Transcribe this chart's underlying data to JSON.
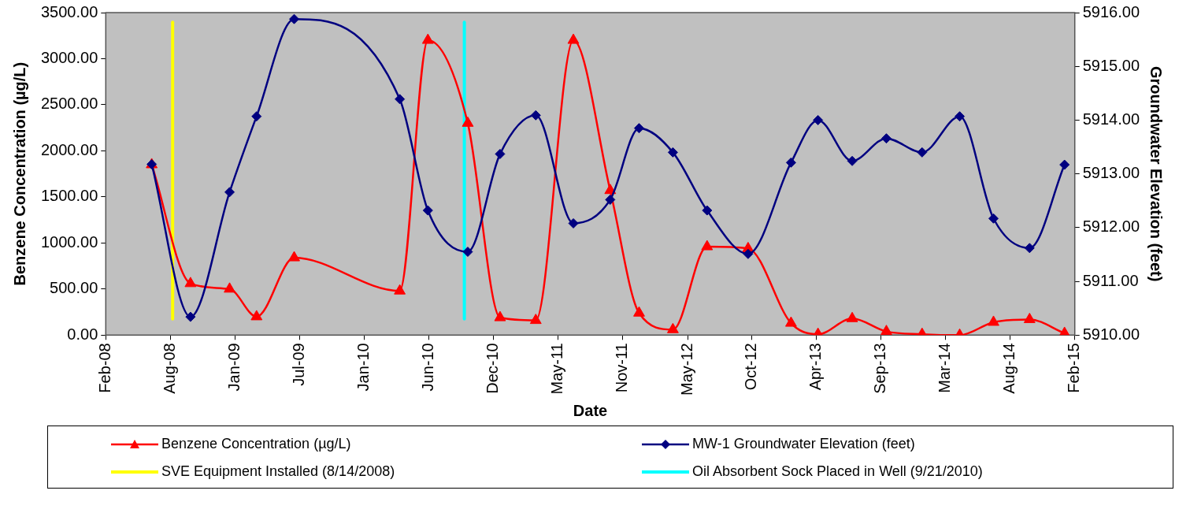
{
  "chart_data": {
    "type": "line",
    "xlabel": "Date",
    "ylabel": "Benzene Concentration (µg/L)",
    "y2label": "Groundwater Elevation (feet)",
    "x": [
      "2008-06-20",
      "2008-09-30",
      "2009-01-11",
      "2009-03-23",
      "2009-06-30",
      "2010-04-04",
      "2010-06-17",
      "2010-09-30",
      "2010-12-24",
      "2011-03-28",
      "2011-07-05",
      "2011-10-10",
      "2011-12-25",
      "2012-03-23",
      "2012-06-21",
      "2012-10-07",
      "2013-01-28",
      "2013-04-09",
      "2013-07-08",
      "2013-10-06",
      "2014-01-08",
      "2014-04-17",
      "2014-07-15",
      "2014-10-18",
      "2015-01-18"
    ],
    "series": [
      {
        "name": "Benzene Concentration (µg/L)",
        "color": "#ff0000",
        "marker": "triangle",
        "values": [
          1850,
          560,
          500,
          200,
          840,
          480,
          3200,
          2300,
          190,
          160,
          3200,
          1570,
          240,
          60,
          960,
          940,
          130,
          10,
          180,
          40,
          10,
          0,
          140,
          170,
          20
        ]
      },
      {
        "name": "MW-1 Groundwater Elevation (feet)",
        "color": "#000080",
        "marker": "diamond",
        "axis": "y2",
        "values": [
          5913.18,
          5910.34,
          5912.66,
          5914.07,
          5915.88,
          5914.39,
          5912.32,
          5911.55,
          5913.37,
          5914.09,
          5912.08,
          5912.52,
          5913.85,
          5913.4,
          5912.32,
          5911.51,
          5913.21,
          5914.0,
          5913.24,
          5913.66,
          5913.4,
          5914.07,
          5912.17,
          5911.62,
          5913.17
        ]
      }
    ],
    "xlim": [
      "2008-02-20",
      "2015-02-14"
    ],
    "xticks": [
      {
        "value": "2008-02-20",
        "label": "Feb-08"
      },
      {
        "value": "2008-08-08",
        "label": "Aug-08"
      },
      {
        "value": "2009-01-25",
        "label": "Jan-09"
      },
      {
        "value": "2009-07-14",
        "label": "Jul-09"
      },
      {
        "value": "2010-01-01",
        "label": "Jan-10"
      },
      {
        "value": "2010-06-19",
        "label": "Jun-10"
      },
      {
        "value": "2010-12-06",
        "label": "Dec-10"
      },
      {
        "value": "2011-05-25",
        "label": "May-11"
      },
      {
        "value": "2011-11-11",
        "label": "Nov-11"
      },
      {
        "value": "2012-05-01",
        "label": "May-12"
      },
      {
        "value": "2012-10-16",
        "label": "Oct-12"
      },
      {
        "value": "2013-04-04",
        "label": "Apr-13"
      },
      {
        "value": "2013-09-21",
        "label": "Sep-13"
      },
      {
        "value": "2014-03-10",
        "label": "Mar-14"
      },
      {
        "value": "2014-08-27",
        "label": "Aug-14"
      },
      {
        "value": "2015-02-13",
        "label": "Feb-15"
      }
    ],
    "ylim": [
      0,
      3500
    ],
    "yticks": [
      {
        "value": 0,
        "label": "0.00"
      },
      {
        "value": 500,
        "label": "500.00"
      },
      {
        "value": 1000,
        "label": "1000.00"
      },
      {
        "value": 1500,
        "label": "1500.00"
      },
      {
        "value": 2000,
        "label": "2000.00"
      },
      {
        "value": 2500,
        "label": "2500.00"
      },
      {
        "value": 3000,
        "label": "3000.00"
      },
      {
        "value": 3500,
        "label": "3500.00"
      }
    ],
    "y2lim": [
      5910,
      5916
    ],
    "y2ticks": [
      {
        "value": 5910,
        "label": "5910.00"
      },
      {
        "value": 5911,
        "label": "5911.00"
      },
      {
        "value": 5912,
        "label": "5912.00"
      },
      {
        "value": 5913,
        "label": "5913.00"
      },
      {
        "value": 5914,
        "label": "5914.00"
      },
      {
        "value": 5915,
        "label": "5915.00"
      },
      {
        "value": 5916,
        "label": "5916.00"
      }
    ],
    "ref_lines": [
      {
        "axis": "x",
        "value": "2008-08-14",
        "label": "SVE Equipment Installed (8/14/2008)",
        "color": "#ffff00"
      },
      {
        "axis": "x",
        "value": "2010-09-21",
        "label": "Oil Absorbent Sock Placed in Well (9/21/2010)",
        "color": "#00ffff"
      }
    ],
    "legend": "bottom"
  }
}
